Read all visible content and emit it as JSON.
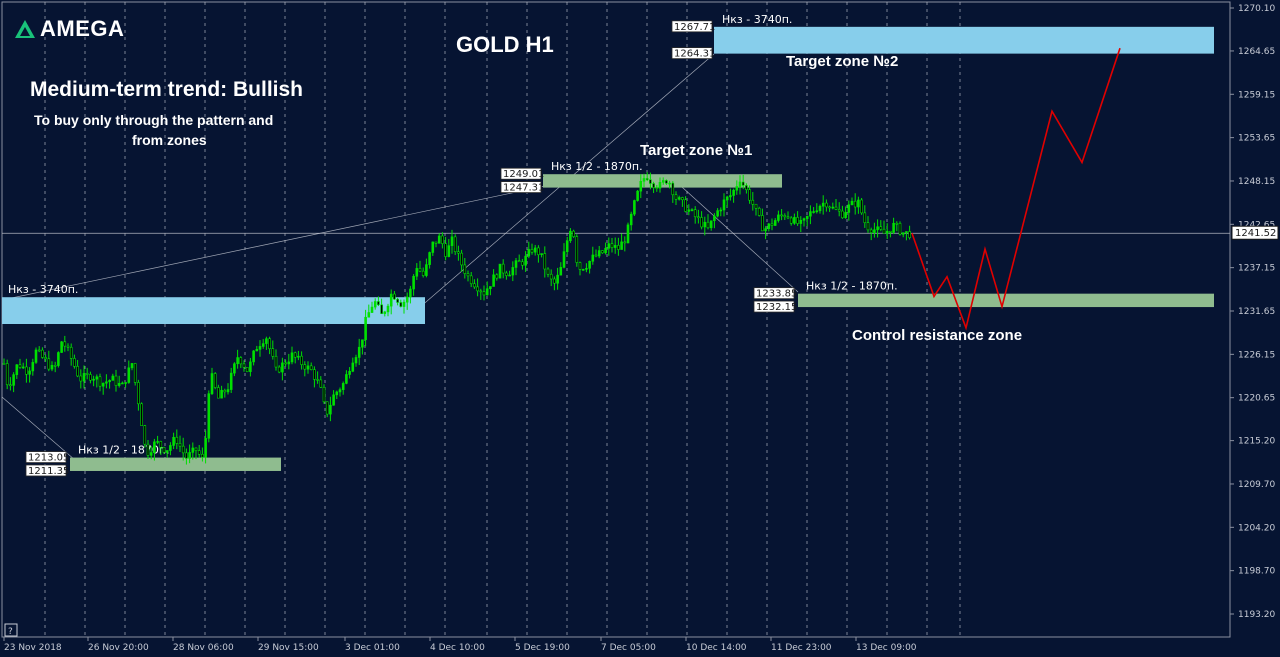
{
  "brand": {
    "logo_text": "AMEGA"
  },
  "header": {
    "title": "GOLD H1",
    "trend": "Medium-term trend: Bullish",
    "note_line1": "To buy only through the pattern  and",
    "note_line2": "from zones"
  },
  "labels": {
    "target_zone_2": "Target zone №2",
    "target_zone_1": "Target zone №1",
    "control_zone": "Control resistance zone",
    "current_price": "1241.52",
    "corner_button": "?"
  },
  "colors": {
    "background": "#061432",
    "candle": "#00e000",
    "forecast": "#e00000",
    "zone_blue": "#87ceeb",
    "zone_green": "#8fbc8f",
    "grid": "#c8ccd6",
    "text": "#ffffff"
  },
  "chart_data": {
    "type": "candlestick",
    "title": "GOLD H1",
    "grid": true,
    "y_axis": {
      "position": "right",
      "range": [
        1190.0,
        1271.0
      ],
      "tick_labels": [
        "1270.10",
        "1264.65",
        "1259.15",
        "1253.65",
        "1248.15",
        "1242.65",
        "1237.15",
        "1231.65",
        "1226.15",
        "1220.65",
        "1215.20",
        "1209.70",
        "1204.20",
        "1198.70",
        "1193.20"
      ]
    },
    "x_axis": {
      "tick_labels": [
        "23 Nov 2018",
        "26 Nov 20:00",
        "28 Nov 06:00",
        "29 Nov 15:00",
        "3 Dec 01:00",
        "4 Dec 10:00",
        "5 Dec 19:00",
        "7 Dec 05:00",
        "10 Dec 14:00",
        "11 Dec 23:00",
        "13 Dec 09:00"
      ]
    },
    "current_price": 1241.52,
    "price_path": [
      [
        0,
        1228.0
      ],
      [
        8,
        1222.0
      ],
      [
        18,
        1225.0
      ],
      [
        28,
        1224.0
      ],
      [
        36,
        1226.5
      ],
      [
        44,
        1225.5
      ],
      [
        54,
        1224.0
      ],
      [
        62,
        1228.0
      ],
      [
        70,
        1226.0
      ],
      [
        80,
        1223.0
      ],
      [
        92,
        1223.5
      ],
      [
        102,
        1222.5
      ],
      [
        112,
        1223.0
      ],
      [
        122,
        1222.0
      ],
      [
        132,
        1225.0
      ],
      [
        140,
        1219.0
      ],
      [
        146,
        1213.5
      ],
      [
        156,
        1215.0
      ],
      [
        166,
        1214.0
      ],
      [
        176,
        1215.5
      ],
      [
        186,
        1213.0
      ],
      [
        196,
        1214.0
      ],
      [
        204,
        1212.5
      ],
      [
        210,
        1224.0
      ],
      [
        218,
        1220.5
      ],
      [
        228,
        1222.0
      ],
      [
        238,
        1226.0
      ],
      [
        248,
        1224.0
      ],
      [
        256,
        1227.0
      ],
      [
        266,
        1228.5
      ],
      [
        276,
        1224.0
      ],
      [
        284,
        1225.0
      ],
      [
        292,
        1226.0
      ],
      [
        302,
        1225.0
      ],
      [
        312,
        1224.0
      ],
      [
        320,
        1222.0
      ],
      [
        326,
        1218.5
      ],
      [
        334,
        1221.0
      ],
      [
        344,
        1222.5
      ],
      [
        352,
        1225.5
      ],
      [
        360,
        1227.0
      ],
      [
        366,
        1230.5
      ],
      [
        374,
        1233.0
      ],
      [
        382,
        1231.0
      ],
      [
        392,
        1234.0
      ],
      [
        402,
        1232.5
      ],
      [
        410,
        1234.0
      ],
      [
        416,
        1237.5
      ],
      [
        424,
        1236.0
      ],
      [
        432,
        1240.0
      ],
      [
        440,
        1241.0
      ],
      [
        446,
        1239.0
      ],
      [
        452,
        1240.5
      ],
      [
        460,
        1238.0
      ],
      [
        468,
        1236.0
      ],
      [
        476,
        1235.0
      ],
      [
        484,
        1234.0
      ],
      [
        492,
        1235.5
      ],
      [
        500,
        1237.0
      ],
      [
        508,
        1236.5
      ],
      [
        516,
        1237.5
      ],
      [
        524,
        1238.0
      ],
      [
        532,
        1239.5
      ],
      [
        540,
        1239.0
      ],
      [
        548,
        1236.0
      ],
      [
        554,
        1235.0
      ],
      [
        560,
        1236.5
      ],
      [
        566,
        1240.0
      ],
      [
        572,
        1243.0
      ],
      [
        578,
        1237.0
      ],
      [
        586,
        1237.5
      ],
      [
        594,
        1238.5
      ],
      [
        602,
        1239.0
      ],
      [
        610,
        1240.0
      ],
      [
        618,
        1239.5
      ],
      [
        626,
        1241.0
      ],
      [
        634,
        1245.0
      ],
      [
        640,
        1247.5
      ],
      [
        646,
        1249.0
      ],
      [
        652,
        1248.0
      ],
      [
        660,
        1247.5
      ],
      [
        668,
        1248.5
      ],
      [
        676,
        1246.0
      ],
      [
        684,
        1245.0
      ],
      [
        692,
        1244.0
      ],
      [
        700,
        1243.0
      ],
      [
        708,
        1242.0
      ],
      [
        716,
        1244.0
      ],
      [
        724,
        1245.5
      ],
      [
        732,
        1246.5
      ],
      [
        740,
        1248.5
      ],
      [
        746,
        1247.0
      ],
      [
        752,
        1245.5
      ],
      [
        758,
        1243.5
      ],
      [
        764,
        1242.0
      ],
      [
        770,
        1242.5
      ],
      [
        778,
        1243.5
      ],
      [
        786,
        1244.0
      ],
      [
        794,
        1243.0
      ],
      [
        802,
        1242.5
      ],
      [
        810,
        1244.0
      ],
      [
        818,
        1245.0
      ],
      [
        826,
        1245.5
      ],
      [
        834,
        1244.5
      ],
      [
        842,
        1244.0
      ],
      [
        850,
        1245.0
      ],
      [
        858,
        1245.5
      ],
      [
        866,
        1242.5
      ],
      [
        874,
        1242.0
      ],
      [
        884,
        1241.5
      ],
      [
        894,
        1242.5
      ],
      [
        904,
        1241.5
      ],
      [
        912,
        1241.5
      ]
    ],
    "forecast_path": [
      [
        912,
        1241.52
      ],
      [
        934,
        1233.5
      ],
      [
        947,
        1236.0
      ],
      [
        966,
        1229.5
      ],
      [
        985,
        1239.5
      ],
      [
        1002,
        1232.2
      ],
      [
        1052,
        1257.0
      ],
      [
        1082,
        1250.5
      ],
      [
        1120,
        1265.0
      ]
    ],
    "zones": [
      {
        "name": "Target zone №2",
        "caption": "Нкз - 3740п.",
        "from": 1264.31,
        "to": 1267.71,
        "color": "zone_blue",
        "x_start": 714,
        "x_end": 1214
      },
      {
        "name": "Target zone №1",
        "caption": "Нкз 1/2 - 1870п.",
        "from": 1247.31,
        "to": 1249.01,
        "color": "zone_green",
        "x_start": 543,
        "x_end": 782
      },
      {
        "name": "Control resistance zone",
        "caption": "Нкз 1/2 - 1870п.",
        "from": 1232.15,
        "to": 1233.85,
        "color": "zone_green",
        "x_start": 798,
        "x_end": 1214
      },
      {
        "name": "",
        "caption": "Нкз - 3740п.",
        "from": 1230.0,
        "to": 1233.4,
        "color": "zone_blue",
        "x_start": 2,
        "x_end": 425
      },
      {
        "name": "",
        "caption": "Нкз 1/2 - 1870п.",
        "from": 1211.35,
        "to": 1213.05,
        "color": "zone_green",
        "x_start": 70,
        "x_end": 281
      }
    ],
    "price_tags": [
      {
        "value": "1267.71",
        "y": 1267.71,
        "x": 672
      },
      {
        "value": "1264.31",
        "y": 1264.31,
        "x": 672
      },
      {
        "value": "1249.01",
        "y": 1249.01,
        "x": 501
      },
      {
        "value": "1247.31",
        "y": 1247.31,
        "x": 501
      },
      {
        "value": "1233.85",
        "y": 1233.85,
        "x": 754
      },
      {
        "value": "1232.15",
        "y": 1232.15,
        "x": 754
      },
      {
        "value": "1213.05",
        "y": 1213.05,
        "x": 26
      },
      {
        "value": "1211.35",
        "y": 1211.35,
        "x": 26
      }
    ]
  }
}
